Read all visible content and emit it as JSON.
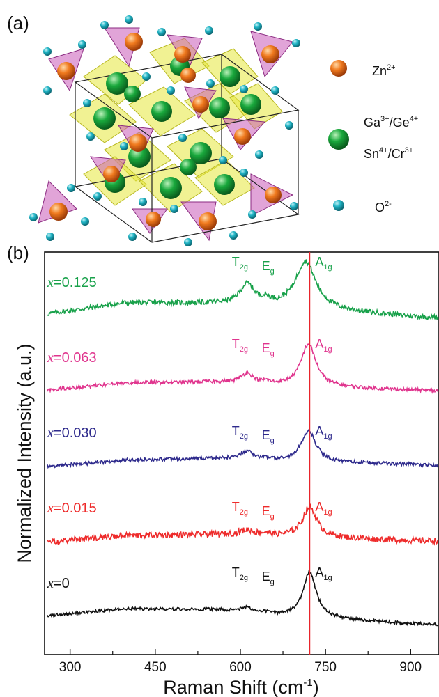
{
  "panel_a": {
    "label": "(a)",
    "legend": [
      {
        "symbol": "orange-sphere",
        "color": "#f07a1e",
        "ion": "Zn",
        "charge": "2+"
      },
      {
        "symbol": "green-sphere",
        "color": "#19a83c",
        "ion": "Ga",
        "charge": "3+",
        "ion2": "Ge",
        "charge2": "4+",
        "ion3": "Sn",
        "charge3": "4+",
        "ion4": "Cr",
        "charge4": "3+"
      },
      {
        "symbol": "cyan-sphere",
        "color": "#1fb3c4",
        "ion": "O",
        "charge": "2-"
      }
    ]
  },
  "panel_b": {
    "label": "(b)"
  },
  "chart_data": {
    "type": "line",
    "xlabel": "Raman Shift (cm-1)",
    "xlabel_main": "Raman Shift (cm",
    "xlabel_sup": "-1",
    "xlabel_end": ")",
    "ylabel": "Normalized Intensity (a.u.)",
    "xlim": [
      255,
      950
    ],
    "xticks": [
      300,
      450,
      600,
      750,
      900
    ],
    "xtick_labels": [
      "300",
      "450",
      "600",
      "750",
      "900"
    ],
    "y_ticks_shown": false,
    "reference_line": {
      "x": 722,
      "color": "#e8242b"
    },
    "peak_positions": {
      "T2g": 612,
      "Eg": 645,
      "A1g": 722
    },
    "series": [
      {
        "name": "x=0.125",
        "var": "x",
        "value": "=0.125",
        "color": "#18a14a",
        "offset": 4,
        "noise": 0.05,
        "baseline": [
          [
            260,
            0.1
          ],
          [
            400,
            0.32
          ],
          [
            560,
            0.3
          ],
          [
            640,
            0.25
          ],
          [
            900,
            0.05
          ],
          [
            950,
            0.02
          ]
        ],
        "peaks": [
          [
            612,
            0.4,
            16
          ],
          [
            645,
            0.08,
            10
          ],
          [
            715,
            0.95,
            22
          ]
        ]
      },
      {
        "name": "x=0.063",
        "var": "x",
        "value": "=0.063",
        "color": "#e0358e",
        "offset": 3,
        "noise": 0.035,
        "baseline": [
          [
            260,
            0.08
          ],
          [
            400,
            0.22
          ],
          [
            560,
            0.24
          ],
          [
            640,
            0.18
          ],
          [
            900,
            0.08
          ],
          [
            950,
            0.06
          ]
        ],
        "peaks": [
          [
            612,
            0.2,
            14
          ],
          [
            645,
            0.05,
            8
          ],
          [
            720,
            0.85,
            16
          ]
        ]
      },
      {
        "name": "x=0.030",
        "var": "x",
        "value": "=0.030",
        "color": "#2e2a8c",
        "offset": 2,
        "noise": 0.035,
        "baseline": [
          [
            260,
            0.06
          ],
          [
            400,
            0.18
          ],
          [
            560,
            0.22
          ],
          [
            640,
            0.16
          ],
          [
            900,
            0.1
          ],
          [
            950,
            0.08
          ]
        ],
        "peaks": [
          [
            612,
            0.18,
            14
          ],
          [
            645,
            0.04,
            8
          ],
          [
            720,
            0.62,
            16
          ]
        ]
      },
      {
        "name": "x=0.015",
        "var": "x",
        "value": "=0.015",
        "color": "#ee2b2b",
        "offset": 1,
        "noise": 0.06,
        "baseline": [
          [
            260,
            0.05
          ],
          [
            400,
            0.18
          ],
          [
            560,
            0.2
          ],
          [
            640,
            0.18
          ],
          [
            900,
            0.08
          ],
          [
            950,
            0.07
          ]
        ],
        "peaks": [
          [
            612,
            0.1,
            14
          ],
          [
            645,
            0.04,
            8
          ],
          [
            722,
            0.6,
            15
          ]
        ]
      },
      {
        "name": "x=0",
        "var": "x",
        "value": "=0",
        "color": "#111111",
        "offset": 0,
        "noise": 0.03,
        "baseline": [
          [
            260,
            0.08
          ],
          [
            400,
            0.22
          ],
          [
            560,
            0.2
          ],
          [
            640,
            0.1
          ],
          [
            900,
            -0.08
          ],
          [
            950,
            -0.1
          ]
        ],
        "peaks": [
          [
            612,
            0.1,
            14
          ],
          [
            645,
            0.04,
            8
          ],
          [
            722,
            0.9,
            14
          ]
        ]
      }
    ],
    "peak_labels": [
      {
        "series": 0,
        "T2g": "T",
        "T2g_sub": "2g",
        "Eg": "E",
        "Eg_sub": "g",
        "A1g": "A",
        "A1g_sub": "1g"
      },
      {
        "series": 1,
        "T2g": "T",
        "T2g_sub": "2g",
        "Eg": "E",
        "Eg_sub": "g",
        "A1g": "A",
        "A1g_sub": "1g"
      },
      {
        "series": 2,
        "T2g": "T",
        "T2g_sub": "2g",
        "Eg": "E",
        "Eg_sub": "g",
        "A1g": "A",
        "A1g_sub": "1g"
      },
      {
        "series": 3,
        "T2g": "T",
        "T2g_sub": "2g",
        "Eg": "E",
        "Eg_sub": "g",
        "A1g": "A",
        "A1g_sub": "1g"
      },
      {
        "series": 4,
        "T2g": "T",
        "T2g_sub": "2g",
        "Eg": "E",
        "Eg_sub": "g",
        "A1g": "A",
        "A1g_sub": "1g"
      }
    ]
  }
}
